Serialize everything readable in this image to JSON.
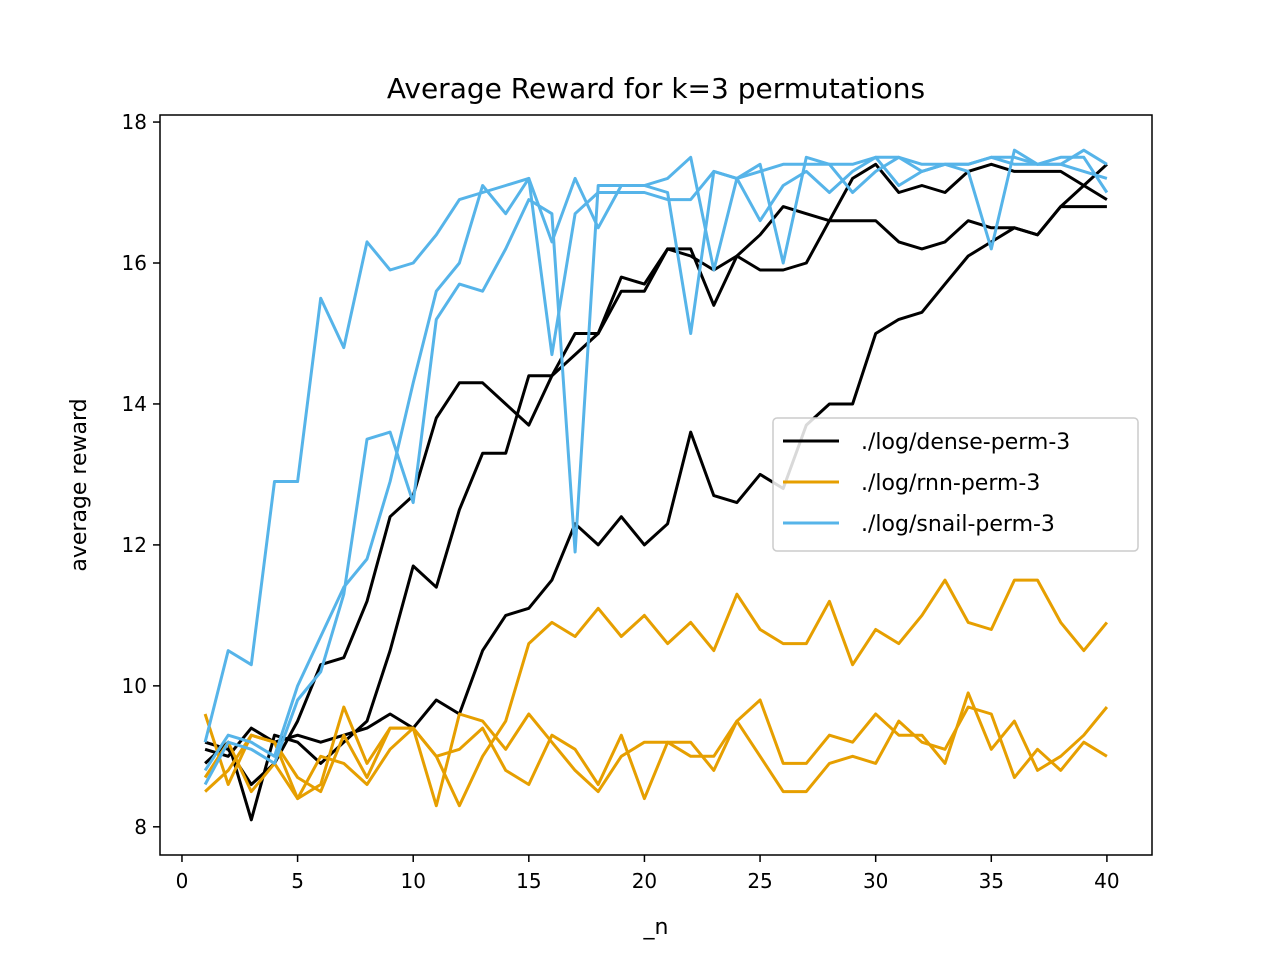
{
  "chart_data": {
    "type": "line",
    "title": "Average Reward for k=3 permutations",
    "xlabel": "_n",
    "ylabel": "average reward",
    "xlim": [
      -0.95,
      41.95
    ],
    "ylim": [
      7.6,
      18.1
    ],
    "xticks": [
      0,
      5,
      10,
      15,
      20,
      25,
      30,
      35,
      40
    ],
    "yticks": [
      8,
      10,
      12,
      14,
      16,
      18
    ],
    "legend_position": "center-right",
    "grid": false,
    "legend": [
      {
        "name": "./log/dense-perm-3",
        "color": "#000000"
      },
      {
        "name": "./log/rnn-perm-3",
        "color": "#E69F00"
      },
      {
        "name": "./log/snail-perm-3",
        "color": "#56B4E9"
      }
    ],
    "x": [
      1,
      2,
      3,
      4,
      5,
      6,
      7,
      8,
      9,
      10,
      11,
      12,
      13,
      14,
      15,
      16,
      17,
      18,
      19,
      20,
      21,
      22,
      23,
      24,
      25,
      26,
      27,
      28,
      29,
      30,
      31,
      32,
      33,
      34,
      35,
      36,
      37,
      38,
      39,
      40
    ],
    "series": [
      {
        "group": 0,
        "color": "#000000",
        "values": [
          9.2,
          9.1,
          8.6,
          8.9,
          9.5,
          10.3,
          10.4,
          11.2,
          12.4,
          12.7,
          13.8,
          14.3,
          14.3,
          14.0,
          13.7,
          14.4,
          15.0,
          15.0,
          15.8,
          15.7,
          16.2,
          16.2,
          15.4,
          16.1,
          16.4,
          16.8,
          16.7,
          16.6,
          16.6,
          16.6,
          16.3,
          16.2,
          16.3,
          16.6,
          16.5,
          16.5,
          16.4,
          16.8,
          16.8,
          16.8
        ]
      },
      {
        "group": 0,
        "color": "#000000",
        "values": [
          8.9,
          9.2,
          8.1,
          9.3,
          9.2,
          8.9,
          9.2,
          9.5,
          10.5,
          11.7,
          11.4,
          12.5,
          13.3,
          13.3,
          14.4,
          14.4,
          14.7,
          15.0,
          15.6,
          15.6,
          16.2,
          16.1,
          15.9,
          16.1,
          15.9,
          15.9,
          16.0,
          16.6,
          17.2,
          17.4,
          17.0,
          17.1,
          17.0,
          17.3,
          17.4,
          17.3,
          17.3,
          17.3,
          17.1,
          16.9
        ]
      },
      {
        "group": 0,
        "color": "#000000",
        "values": [
          9.1,
          9.0,
          9.4,
          9.2,
          9.3,
          9.2,
          9.3,
          9.4,
          9.6,
          9.4,
          9.8,
          9.6,
          10.5,
          11.0,
          11.1,
          11.5,
          12.3,
          12.0,
          12.4,
          12.0,
          12.3,
          13.6,
          12.7,
          12.6,
          13.0,
          12.8,
          13.7,
          14.0,
          14.0,
          15.0,
          15.2,
          15.3,
          15.7,
          16.1,
          16.3,
          16.5,
          16.4,
          16.8,
          17.1,
          17.4
        ]
      },
      {
        "group": 1,
        "color": "#E69F00",
        "values": [
          9.6,
          8.6,
          9.3,
          9.2,
          8.4,
          8.6,
          9.7,
          8.9,
          9.4,
          9.4,
          9.0,
          9.1,
          9.4,
          8.8,
          8.6,
          9.3,
          9.1,
          8.6,
          9.3,
          8.4,
          9.2,
          9.2,
          8.8,
          9.5,
          9.8,
          8.9,
          8.9,
          9.3,
          9.2,
          9.6,
          9.3,
          9.3,
          8.9,
          9.9,
          9.1,
          9.5,
          8.8,
          9.0,
          9.3,
          9.7
        ]
      },
      {
        "group": 1,
        "color": "#E69F00",
        "values": [
          8.5,
          8.8,
          9.3,
          9.2,
          8.7,
          8.5,
          9.3,
          8.7,
          9.4,
          9.4,
          8.3,
          9.6,
          9.5,
          9.1,
          9.6,
          9.2,
          8.8,
          8.5,
          9.0,
          9.2,
          9.2,
          9.0,
          9.0,
          9.5,
          9.0,
          8.5,
          8.5,
          8.9,
          9.0,
          8.9,
          9.5,
          9.2,
          9.1,
          9.7,
          9.6,
          8.7,
          9.1,
          8.8,
          9.2,
          9.0
        ]
      },
      {
        "group": 1,
        "color": "#E69F00",
        "values": [
          8.7,
          9.2,
          8.5,
          8.9,
          8.4,
          9.0,
          8.9,
          8.6,
          9.1,
          9.4,
          9.0,
          8.3,
          9.0,
          9.5,
          10.6,
          10.9,
          10.7,
          11.1,
          10.7,
          11.0,
          10.6,
          10.9,
          10.5,
          11.3,
          10.8,
          10.6,
          10.6,
          11.2,
          10.3,
          10.8,
          10.6,
          11.0,
          11.5,
          10.9,
          10.8,
          11.5,
          11.5,
          10.9,
          10.5,
          10.9
        ]
      },
      {
        "group": 2,
        "color": "#56B4E9",
        "values": [
          9.2,
          10.5,
          10.3,
          12.9,
          12.9,
          15.5,
          14.8,
          16.3,
          15.9,
          16.0,
          16.4,
          16.9,
          17.0,
          17.1,
          17.2,
          16.3,
          17.2,
          16.5,
          17.1,
          17.1,
          17.2,
          17.5,
          15.9,
          17.2,
          17.4,
          16.0,
          17.5,
          17.4,
          17.0,
          17.3,
          17.5,
          17.4,
          17.4,
          17.3,
          16.2,
          17.6,
          17.4,
          17.4,
          17.6,
          17.4
        ]
      },
      {
        "group": 2,
        "color": "#56B4E9",
        "values": [
          8.6,
          9.2,
          9.1,
          8.9,
          9.8,
          10.2,
          11.3,
          13.5,
          13.6,
          12.6,
          15.2,
          15.7,
          15.6,
          16.2,
          16.9,
          16.7,
          11.9,
          17.1,
          17.1,
          17.1,
          17.0,
          15.0,
          17.3,
          17.2,
          17.3,
          17.4,
          17.4,
          17.4,
          17.4,
          17.5,
          17.1,
          17.3,
          17.4,
          17.4,
          17.5,
          17.5,
          17.4,
          17.4,
          17.3,
          17.2
        ]
      },
      {
        "group": 2,
        "color": "#56B4E9",
        "values": [
          8.8,
          9.3,
          9.2,
          9.0,
          10.0,
          10.7,
          11.4,
          11.8,
          12.9,
          14.3,
          15.6,
          16.0,
          17.1,
          16.7,
          17.2,
          14.7,
          16.7,
          17.0,
          17.0,
          17.0,
          16.9,
          16.9,
          17.3,
          17.2,
          16.6,
          17.1,
          17.3,
          17.0,
          17.3,
          17.5,
          17.5,
          17.3,
          17.4,
          17.4,
          17.5,
          17.4,
          17.4,
          17.5,
          17.5,
          17.0
        ]
      }
    ]
  }
}
